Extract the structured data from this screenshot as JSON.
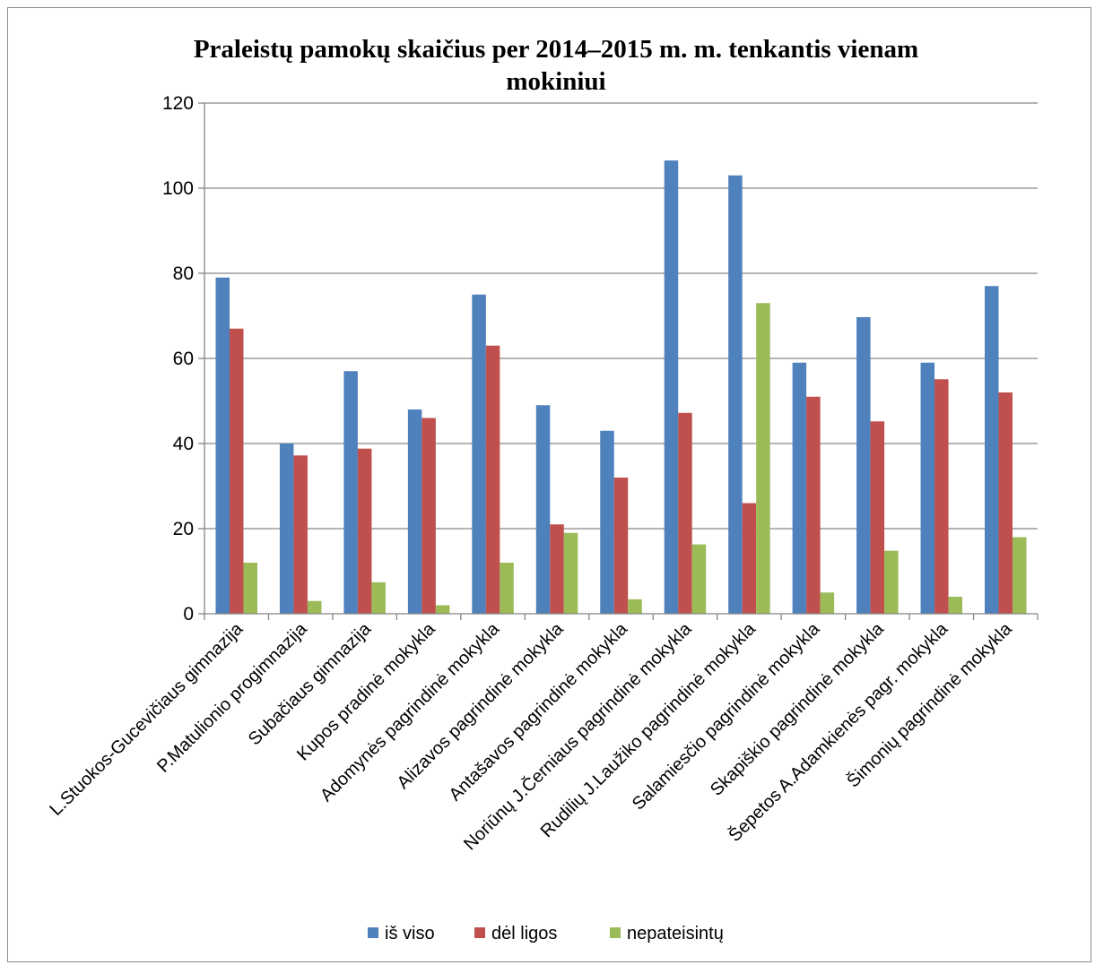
{
  "chart_data": {
    "type": "bar",
    "title": "Praleistų pamokų skaičius per 2014–2015 m. m. tenkantis vienam mokiniui",
    "title_lines": [
      "Praleistų pamokų skaičius per 2014–2015 m. m. tenkantis vienam",
      "mokiniui"
    ],
    "xlabel": "",
    "ylabel": "",
    "ylim": [
      0,
      120
    ],
    "yticks": [
      0,
      20,
      40,
      60,
      80,
      100,
      120
    ],
    "grid": true,
    "legend_position": "bottom",
    "categories": [
      "L.Stuokos-Gucevičiaus gimnazija",
      "P.Matulionio progimnazija",
      "Subačiaus gimnazija",
      "Kupos pradinė mokykla",
      "Adomynės pagrindinė mokykla",
      "Alizavos pagrindinė mokykla",
      "Antašavos pagrindinė mokykla",
      "Noriūnų J.Černiaus pagrindinė mokykla",
      "Rudilių J.Laužiko pagrindinė mokykla",
      "Salamiesčio pagrindinė mokykla",
      "Skapiškio pagrindinė mokykla",
      "Šepetos A.Adamkienės pagr. mokykla",
      "Šimonių pagrindinė mokykla"
    ],
    "series": [
      {
        "name": "iš viso",
        "color": "#4f81bd",
        "values": [
          79,
          40,
          57,
          48,
          75,
          49,
          43,
          106.5,
          103,
          59,
          69.7,
          59,
          77
        ]
      },
      {
        "name": "dėl ligos",
        "color": "#c0504d",
        "values": [
          67,
          37.2,
          38.8,
          46,
          63,
          21,
          32,
          47.2,
          26,
          51,
          45.2,
          55.1,
          52
        ]
      },
      {
        "name": "nepateisintų",
        "color": "#9bbb59",
        "values": [
          12,
          3,
          7.4,
          2,
          12,
          19,
          3.4,
          16.3,
          73,
          5,
          14.8,
          4,
          18
        ]
      }
    ]
  }
}
